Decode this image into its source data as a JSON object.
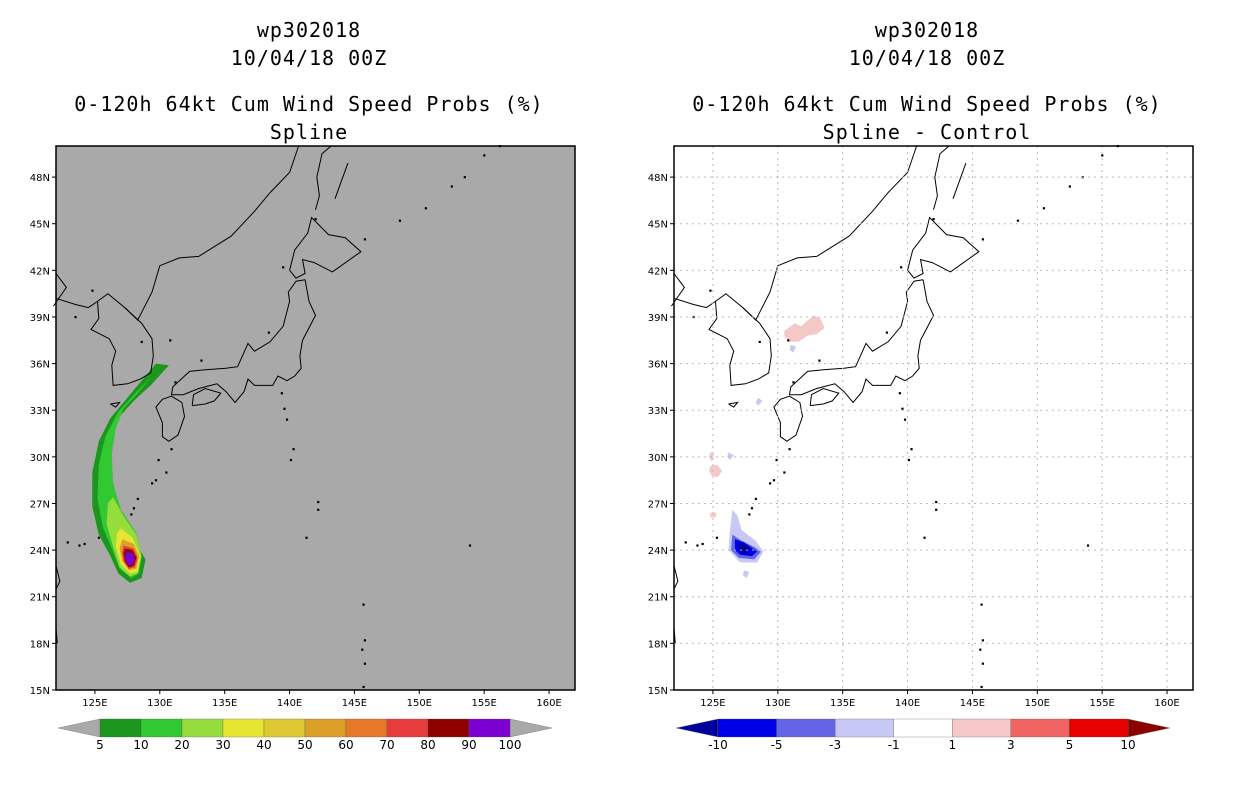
{
  "panels": [
    {
      "id": "left",
      "title": [
        "wp302018",
        "10/04/18 00Z",
        "0-120h 64kt Cum Wind Speed Probs (%)",
        "Spline"
      ],
      "background": "#a9a9a9",
      "lon_ticks": [
        "125E",
        "130E",
        "135E",
        "140E",
        "145E",
        "150E",
        "155E",
        "160E"
      ],
      "lat_ticks": [
        "48N",
        "45N",
        "42N",
        "39N",
        "36N",
        "33N",
        "30N",
        "27N",
        "24N",
        "21N",
        "18N",
        "15N"
      ],
      "colorbar": {
        "labels": [
          "5",
          "10",
          "20",
          "30",
          "40",
          "50",
          "60",
          "70",
          "80",
          "90",
          "100"
        ],
        "colors": [
          "#1c961c",
          "#32c832",
          "#96dc3c",
          "#e6e632",
          "#dcc832",
          "#dca028",
          "#e67828",
          "#e63c3c",
          "#8c0000",
          "#7d00d2"
        ],
        "left_arrow": "#a9a9a9",
        "right_arrow": "#a9a9a9"
      }
    },
    {
      "id": "right",
      "title": [
        "wp302018",
        "10/04/18 00Z",
        "0-120h 64kt Cum Wind Speed Probs (%)",
        "Spline - Control"
      ],
      "background": "#ffffff",
      "lon_ticks": [
        "125E",
        "130E",
        "135E",
        "140E",
        "145E",
        "150E",
        "155E",
        "160E"
      ],
      "lat_ticks": [
        "48N",
        "45N",
        "42N",
        "39N",
        "36N",
        "33N",
        "30N",
        "27N",
        "24N",
        "21N",
        "18N",
        "15N"
      ],
      "colorbar": {
        "labels": [
          "-10",
          "-5",
          "-3",
          "-1",
          "1",
          "3",
          "5",
          "10"
        ],
        "colors": [
          "#0000e6",
          "#6464e6",
          "#c8c8f5",
          "#ffffff",
          "#f5c8c8",
          "#f06464",
          "#e60000"
        ],
        "left_arrow": "#00009b",
        "right_arrow": "#8c0000"
      }
    }
  ]
}
